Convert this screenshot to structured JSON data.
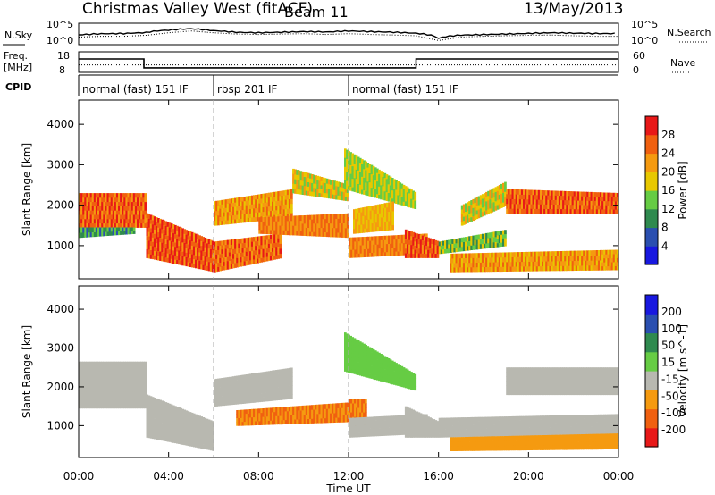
{
  "header": {
    "station": "Christmas Valley West (fitACF)",
    "beam": "Beam 11",
    "date": "13/May/2013"
  },
  "panels": {
    "nsky_label": "N.Sky",
    "nsky_ticks": [
      "10^5",
      "10^0"
    ],
    "nsearch_label": "N.Search",
    "nsearch_ticks": [
      "10^5",
      "10^0"
    ],
    "freq_label_1": "Freq.",
    "freq_label_2": "[MHz]",
    "freq_ticks": [
      "18",
      "8"
    ],
    "nave_label": "Nave",
    "nave_ticks": [
      "60",
      "0"
    ],
    "cpid_label": "CPID"
  },
  "cpid_segments": [
    {
      "label": "normal (fast) 151 IF",
      "start_h": 0,
      "end_h": 6
    },
    {
      "label": "rbsp 201 IF",
      "start_h": 6,
      "end_h": 12
    },
    {
      "label": "normal (fast) 151 IF",
      "start_h": 12,
      "end_h": 24
    }
  ],
  "colors": {
    "power": [
      "#1818e0",
      "#2a4fb0",
      "#2f8a4f",
      "#66cc44",
      "#e8c800",
      "#f59a10",
      "#f06010",
      "#e81818"
    ],
    "velocity": [
      "#e81818",
      "#f06010",
      "#f59a10",
      "#b8b8b0",
      "#66cc44",
      "#2f8a4f",
      "#2a4fb0",
      "#1818e0"
    ]
  },
  "chart_data": [
    {
      "type": "line",
      "name": "N.Sky / N.Search",
      "x_unit": "hour UT",
      "x": [
        0,
        1,
        2,
        3,
        4,
        5,
        6,
        7,
        8,
        9,
        10,
        11,
        12,
        13,
        14,
        15,
        16,
        17,
        18,
        19,
        20,
        21,
        22,
        23,
        24
      ],
      "series": [
        {
          "name": "N.Sky",
          "values": [
            200,
            300,
            300,
            500,
            2000,
            5000,
            2000,
            1000,
            800,
            1000,
            1200,
            800,
            1200,
            800,
            600,
            400,
            30,
            200,
            300,
            400,
            500,
            600,
            400,
            300,
            300
          ]
        }
      ],
      "ylim": [
        1,
        100000
      ],
      "scale": "log"
    },
    {
      "type": "line",
      "name": "Freq / Nave",
      "x": [
        0,
        2.9,
        2.9,
        15,
        15,
        24
      ],
      "series": [
        {
          "name": "Freq. [MHz]",
          "values": [
            14.5,
            14.5,
            10.2,
            10.2,
            14.5,
            14.5
          ]
        },
        {
          "name": "Nave",
          "values": [
            22,
            22,
            22,
            22,
            22,
            22
          ]
        }
      ],
      "ylim": [
        8,
        18
      ]
    },
    {
      "type": "heatmap",
      "title": "",
      "xlabel": "Time UT",
      "ylabel": "Slant Range [km]",
      "colorbar_label": "Power [dB]",
      "colorbar_ticks": [
        "28",
        "24",
        "20",
        "16",
        "12",
        "8",
        "4"
      ],
      "x_ticks": [
        "00:00",
        "04:00",
        "08:00",
        "12:00",
        "16:00",
        "20:00",
        "00:00"
      ],
      "y_ticks": [
        "1000",
        "2000",
        "3000",
        "4000"
      ],
      "xlim": [
        0,
        24
      ],
      "ylim": [
        180,
        4600
      ],
      "bands": [
        {
          "t": [
            0,
            3
          ],
          "r0": [
            1450,
            1450
          ],
          "r1": [
            2300,
            2300
          ],
          "v": 26
        },
        {
          "t": [
            0,
            2.5
          ],
          "r0": [
            1200,
            1300
          ],
          "r1": [
            1450,
            1450
          ],
          "v": 10
        },
        {
          "t": [
            3,
            6
          ],
          "r0": [
            700,
            350
          ],
          "r1": [
            1800,
            1100
          ],
          "v": 27
        },
        {
          "t": [
            6,
            9
          ],
          "r0": [
            350,
            700
          ],
          "r1": [
            1100,
            1300
          ],
          "v": 25
        },
        {
          "t": [
            6,
            9.5
          ],
          "r0": [
            1500,
            1700
          ],
          "r1": [
            2100,
            2400
          ],
          "v": 22
        },
        {
          "t": [
            8,
            12
          ],
          "r0": [
            1300,
            1200
          ],
          "r1": [
            1700,
            1800
          ],
          "v": 24
        },
        {
          "t": [
            9.5,
            12
          ],
          "r0": [
            2300,
            2100
          ],
          "r1": [
            2900,
            2500
          ],
          "v": 18
        },
        {
          "t": [
            11.8,
            15
          ],
          "r0": [
            2400,
            1900
          ],
          "r1": [
            3400,
            2300
          ],
          "v": 16
        },
        {
          "t": [
            12,
            15.5
          ],
          "r0": [
            700,
            800
          ],
          "r1": [
            1200,
            1300
          ],
          "v": 24
        },
        {
          "t": [
            12.2,
            14
          ],
          "r0": [
            1300,
            1400
          ],
          "r1": [
            1900,
            2100
          ],
          "v": 20
        },
        {
          "t": [
            14.5,
            16
          ],
          "r0": [
            700,
            700
          ],
          "r1": [
            1400,
            1100
          ],
          "v": 27
        },
        {
          "t": [
            16,
            19
          ],
          "r0": [
            800,
            1000
          ],
          "r1": [
            1100,
            1400
          ],
          "v": 14
        },
        {
          "t": [
            16.5,
            24
          ],
          "r0": [
            350,
            400
          ],
          "r1": [
            800,
            900
          ],
          "v": 22
        },
        {
          "t": [
            17,
            19
          ],
          "r0": [
            1500,
            2000
          ],
          "r1": [
            2000,
            2600
          ],
          "v": 18
        },
        {
          "t": [
            19,
            24
          ],
          "r0": [
            1800,
            1800
          ],
          "r1": [
            2400,
            2300
          ],
          "v": 26
        }
      ]
    },
    {
      "type": "heatmap",
      "title": "",
      "xlabel": "Time UT",
      "ylabel": "Slant Range [km]",
      "colorbar_label": "Velocity [m s^-1]",
      "colorbar_ticks": [
        "200",
        "100",
        "50",
        "15",
        "-15",
        "-50",
        "-100",
        "-200"
      ],
      "x_ticks": [
        "00:00",
        "04:00",
        "08:00",
        "12:00",
        "16:00",
        "20:00",
        "00:00"
      ],
      "y_ticks": [
        "1000",
        "2000",
        "3000",
        "4000"
      ],
      "xlim": [
        0,
        24
      ],
      "ylim": [
        180,
        4600
      ],
      "bands": [
        {
          "t": [
            0,
            3
          ],
          "r0": [
            1450,
            1450
          ],
          "r1": [
            2650,
            2650
          ],
          "v": 0
        },
        {
          "t": [
            3,
            6
          ],
          "r0": [
            700,
            350
          ],
          "r1": [
            1800,
            1100
          ],
          "v": 0
        },
        {
          "t": [
            6,
            9.5
          ],
          "r0": [
            1500,
            1700
          ],
          "r1": [
            2200,
            2500
          ],
          "v": 0
        },
        {
          "t": [
            7,
            12
          ],
          "r0": [
            1000,
            1100
          ],
          "r1": [
            1400,
            1600
          ],
          "v": -50
        },
        {
          "t": [
            12,
            12.8
          ],
          "r0": [
            1000,
            1000
          ],
          "r1": [
            1700,
            1700
          ],
          "v": -50
        },
        {
          "t": [
            11.8,
            15
          ],
          "r0": [
            2400,
            1900
          ],
          "r1": [
            3400,
            2300
          ],
          "v": 40
        },
        {
          "t": [
            12,
            15.5
          ],
          "r0": [
            700,
            800
          ],
          "r1": [
            1200,
            1300
          ],
          "v": 0
        },
        {
          "t": [
            14.5,
            16
          ],
          "r0": [
            700,
            700
          ],
          "r1": [
            1500,
            1100
          ],
          "v": 0
        },
        {
          "t": [
            16,
            24
          ],
          "r0": [
            700,
            800
          ],
          "r1": [
            1200,
            1300
          ],
          "v": 0
        },
        {
          "t": [
            16.5,
            24
          ],
          "r0": [
            350,
            400
          ],
          "r1": [
            700,
            800
          ],
          "v": -20
        },
        {
          "t": [
            19,
            24
          ],
          "r0": [
            1800,
            1800
          ],
          "r1": [
            2500,
            2500
          ],
          "v": 0
        }
      ]
    }
  ]
}
